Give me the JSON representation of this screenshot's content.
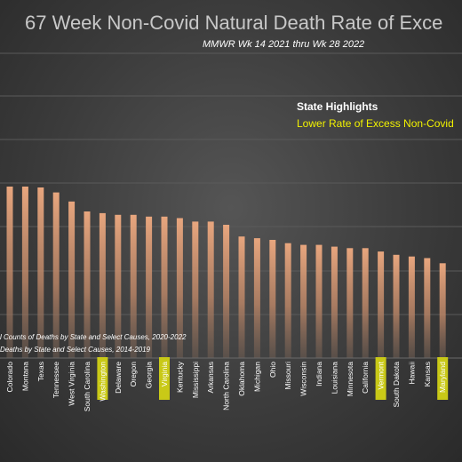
{
  "chart_data": {
    "type": "bar",
    "title": "67 Week Non-Covid Natural Death Rate of Exce",
    "subtitle": "MMWR Wk 14  2021  thru Wk 28  2022",
    "highlights": {
      "heading": "State Highlights",
      "text": "Lower Rate of Excess Non-Covid",
      "highlight_color": "#c9c917"
    },
    "sources": [
      "l Counts of Deaths by State and Select Causes, 2020-2022",
      "Deaths by State and Select Causes, 2014-2019"
    ],
    "categories": [
      "Colorado",
      "Montana",
      "Texas",
      "Tennessee",
      "West Virginia",
      "South Carolina",
      "Washington",
      "Delaware",
      "Oregon",
      "Georgia",
      "Virginia",
      "Kentucky",
      "Mississippi",
      "Arkansas",
      "North Carolina",
      "Oklahoma",
      "Michigan",
      "Ohio",
      "Missouri",
      "Wisconsin",
      "Indiana",
      "Louisiana",
      "Minnesota",
      "California",
      "Vermont",
      "South Dakota",
      "Hawaii",
      "Kansas",
      "Maryland"
    ],
    "values": [
      100,
      100,
      99.5,
      96.6,
      91.3,
      85.5,
      84.5,
      83.5,
      83.5,
      82.5,
      82.5,
      81.6,
      79.6,
      79.6,
      77.7,
      70.9,
      69.9,
      68.9,
      67,
      66,
      66,
      65,
      64.1,
      64.1,
      62.1,
      60.2,
      59.2,
      58.3,
      55.3
    ],
    "highlighted": [
      "Washington",
      "Virginia",
      "Vermont",
      "Maryland"
    ],
    "gridlines": true,
    "bar_color": "#e8a67e"
  }
}
